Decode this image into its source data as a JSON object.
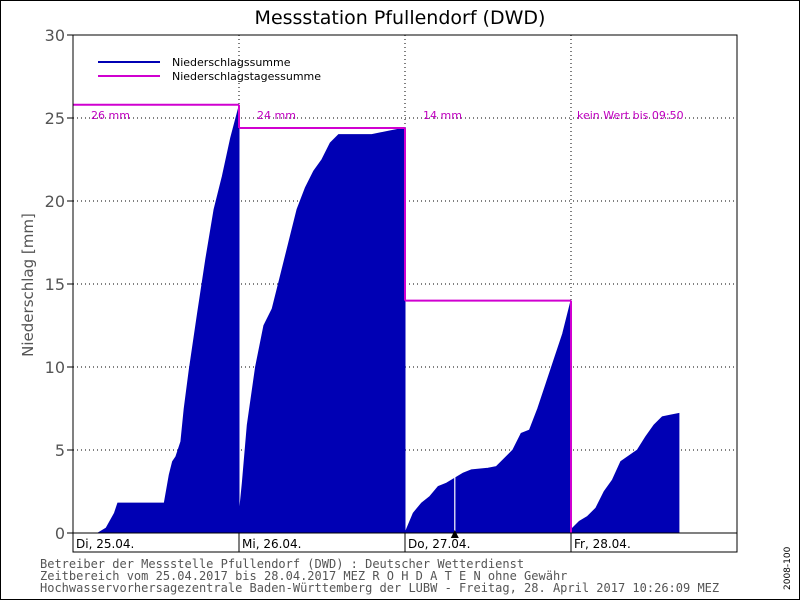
{
  "chart_data": {
    "type": "area",
    "title": "Messstation Pfullendorf (DWD)",
    "ylabel": "Niederschlag [mm]",
    "ylim": [
      0,
      30
    ],
    "yticks": [
      0,
      5,
      10,
      15,
      20,
      25,
      30
    ],
    "grid": true,
    "legend_position": "top-left",
    "day_labels": [
      "Di, 25.04.",
      "Mi, 26.04.",
      "Do, 27.04.",
      "Fr, 28.04."
    ],
    "series": [
      {
        "name": "Niederschlagssumme",
        "color": "#0000b4",
        "days": [
          {
            "x": [
              0,
              0.15,
              0.2,
              0.25,
              0.27,
              0.3,
              0.55,
              0.58,
              0.6,
              0.62,
              0.65,
              0.67,
              0.7,
              0.75,
              0.8,
              0.85,
              0.9,
              0.95,
              1.0
            ],
            "y": [
              0,
              0,
              0.3,
              1.2,
              1.8,
              1.8,
              1.8,
              3.5,
              4.3,
              4.6,
              5.5,
              7.5,
              9.8,
              13.2,
              16.5,
              19.5,
              21.5,
              23.8,
              25.7
            ]
          },
          {
            "x": [
              0,
              0.02,
              0.05,
              0.1,
              0.15,
              0.2,
              0.25,
              0.3,
              0.35,
              0.4,
              0.45,
              0.5,
              0.55,
              0.6,
              0.65,
              0.7,
              0.8,
              0.9,
              1.0
            ],
            "y": [
              1.0,
              3.0,
              6.5,
              10.0,
              12.5,
              13.5,
              15.5,
              17.5,
              19.5,
              20.8,
              21.8,
              22.5,
              23.5,
              24.0,
              24.0,
              24.0,
              24.0,
              24.2,
              24.4
            ]
          },
          {
            "x": [
              0,
              0.05,
              0.1,
              0.15,
              0.2,
              0.25,
              0.3,
              0.35,
              0.4,
              0.5,
              0.55,
              0.6,
              0.65,
              0.7,
              0.75,
              0.8,
              0.85,
              0.9,
              0.95,
              1.0
            ],
            "y": [
              0,
              1.2,
              1.8,
              2.2,
              2.8,
              3.0,
              3.3,
              3.6,
              3.8,
              3.9,
              4.0,
              4.5,
              5.0,
              6.0,
              6.2,
              7.5,
              9.0,
              10.5,
              12.0,
              14.0
            ]
          },
          {
            "x": [
              0,
              0.05,
              0.1,
              0.15,
              0.2,
              0.25,
              0.3,
              0.4,
              0.45,
              0.5,
              0.55,
              0.6,
              0.65
            ],
            "y": [
              0.2,
              0.7,
              1.0,
              1.5,
              2.5,
              3.2,
              4.3,
              5.0,
              5.8,
              6.5,
              7.0,
              7.1,
              7.2
            ]
          }
        ]
      },
      {
        "name": "Niederschlagstagessumme",
        "color": "#d000d0",
        "values": [
          25.8,
          24.4,
          14.0,
          null
        ]
      }
    ],
    "annotations": [
      "26 mm",
      "24 mm",
      "14 mm",
      "kein Wert bis 09:50"
    ]
  },
  "footer": {
    "line1": "Betreiber der Messstelle Pfullendorf (DWD) : Deutscher Wetterdienst",
    "line2": "Zeitbereich vom 25.04.2017 bis 28.04.2017   MEZ   R O H D A T E N ohne Gewähr",
    "line3": "Hochwasservorhersagezentrale Baden-Württemberg der LUBW - Freitag, 28. April 2017 10:26:09 MEZ"
  },
  "side_code": "2008-100"
}
